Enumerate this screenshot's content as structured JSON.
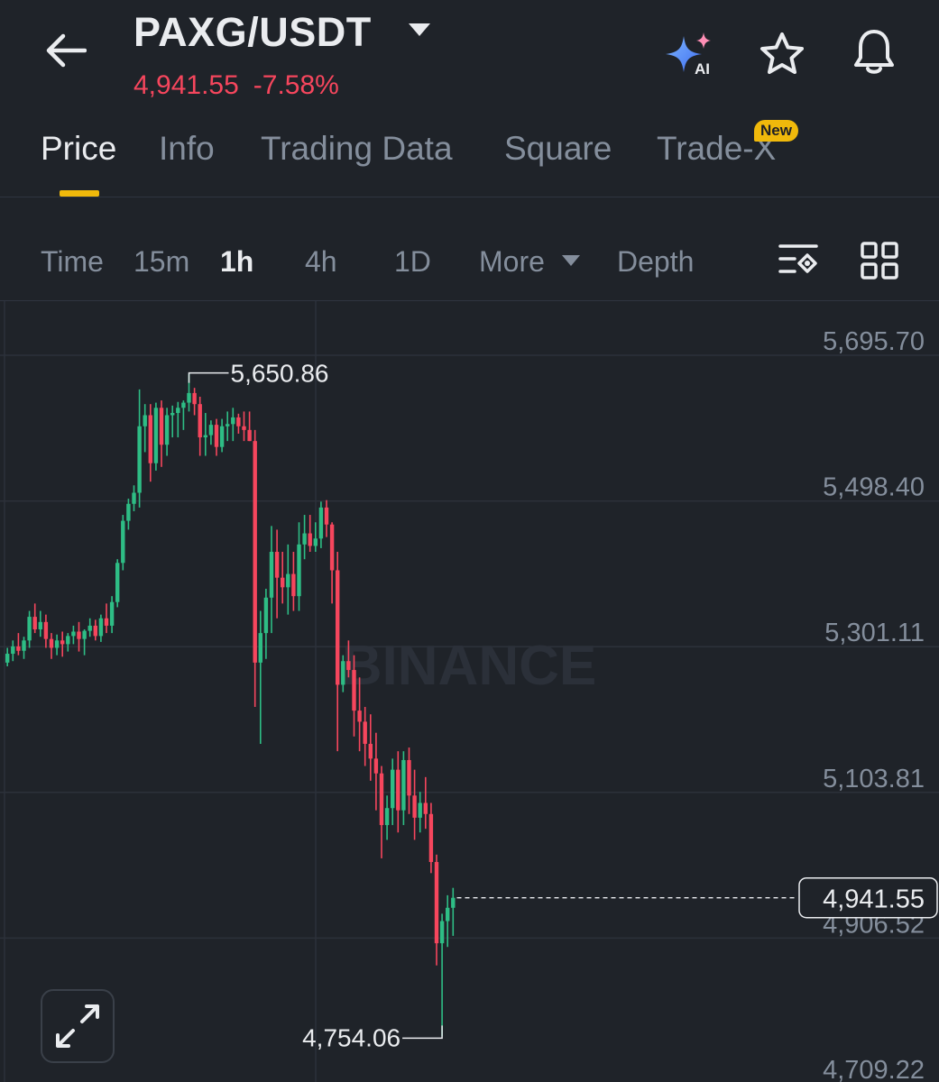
{
  "header": {
    "pair": "PAXG/USDT",
    "price": "4,941.55",
    "change": "-7.58%",
    "icons": [
      "back-arrow-icon",
      "chevron-down-icon",
      "ai-sparkle-icon",
      "star-icon",
      "bell-icon"
    ]
  },
  "tabs": [
    {
      "label": "Price",
      "active": true
    },
    {
      "label": "Info",
      "active": false
    },
    {
      "label": "Trading Data",
      "active": false
    },
    {
      "label": "Square",
      "active": false
    },
    {
      "label": "Trade-X",
      "active": false,
      "badge": "New"
    }
  ],
  "timeframes": {
    "time": "Time",
    "m15": "15m",
    "h1": "1h",
    "h4": "4h",
    "d1": "1D",
    "more": "More",
    "depth": "Depth",
    "active": "1h"
  },
  "colors": {
    "up": "#2ebd85",
    "down": "#f6465d",
    "accent": "#f0b90b",
    "background": "#1f2329"
  },
  "chart_data": {
    "type": "candlestick",
    "watermark": "BINANCE",
    "y_axis": [
      "5,695.70",
      "5,498.40",
      "5,301.11",
      "5,103.81",
      "4,906.52",
      "4,709.22"
    ],
    "ylim": [
      4709.22,
      5695.7
    ],
    "high_label": "5,650.86",
    "low_label": "4,754.06",
    "current_price_label": "4,941.55",
    "current_price": 4941.55,
    "candles": [
      [
        5260,
        5280,
        5255,
        5272
      ],
      [
        5272,
        5290,
        5262,
        5282
      ],
      [
        5282,
        5300,
        5270,
        5276
      ],
      [
        5276,
        5295,
        5265,
        5290
      ],
      [
        5290,
        5330,
        5280,
        5322
      ],
      [
        5322,
        5340,
        5300,
        5305
      ],
      [
        5305,
        5330,
        5295,
        5315
      ],
      [
        5315,
        5325,
        5280,
        5292
      ],
      [
        5292,
        5300,
        5265,
        5280
      ],
      [
        5280,
        5298,
        5270,
        5290
      ],
      [
        5290,
        5302,
        5268,
        5285
      ],
      [
        5285,
        5300,
        5275,
        5296
      ],
      [
        5296,
        5310,
        5285,
        5302
      ],
      [
        5302,
        5315,
        5275,
        5292
      ],
      [
        5292,
        5305,
        5270,
        5303
      ],
      [
        5303,
        5320,
        5295,
        5310
      ],
      [
        5310,
        5318,
        5290,
        5296
      ],
      [
        5296,
        5325,
        5288,
        5320
      ],
      [
        5320,
        5340,
        5300,
        5310
      ],
      [
        5310,
        5350,
        5300,
        5342
      ],
      [
        5342,
        5400,
        5335,
        5395
      ],
      [
        5395,
        5460,
        5385,
        5452
      ],
      [
        5452,
        5482,
        5440,
        5475
      ],
      [
        5475,
        5500,
        5465,
        5490
      ],
      [
        5490,
        5630,
        5470,
        5580
      ],
      [
        5580,
        5610,
        5545,
        5595
      ],
      [
        5595,
        5610,
        5505,
        5530
      ],
      [
        5530,
        5612,
        5520,
        5605
      ],
      [
        5605,
        5615,
        5525,
        5555
      ],
      [
        5555,
        5605,
        5540,
        5595
      ],
      [
        5595,
        5608,
        5565,
        5598
      ],
      [
        5598,
        5613,
        5565,
        5605
      ],
      [
        5605,
        5615,
        5575,
        5612
      ],
      [
        5612,
        5651,
        5600,
        5625
      ],
      [
        5625,
        5632,
        5595,
        5610
      ],
      [
        5610,
        5620,
        5540,
        5565
      ],
      [
        5565,
        5598,
        5540,
        5568
      ],
      [
        5568,
        5588,
        5555,
        5582
      ],
      [
        5582,
        5590,
        5540,
        5552
      ],
      [
        5552,
        5590,
        5545,
        5580
      ],
      [
        5580,
        5600,
        5560,
        5583
      ],
      [
        5583,
        5605,
        5560,
        5592
      ],
      [
        5592,
        5597,
        5570,
        5580
      ],
      [
        5580,
        5600,
        5560,
        5575
      ],
      [
        5575,
        5600,
        5560,
        5560
      ],
      [
        5560,
        5575,
        5200,
        5260
      ],
      [
        5260,
        5330,
        5150,
        5300
      ],
      [
        5300,
        5360,
        5265,
        5348
      ],
      [
        5348,
        5445,
        5300,
        5410
      ],
      [
        5410,
        5440,
        5320,
        5375
      ],
      [
        5375,
        5410,
        5340,
        5362
      ],
      [
        5362,
        5420,
        5325,
        5380
      ],
      [
        5380,
        5410,
        5330,
        5350
      ],
      [
        5350,
        5450,
        5330,
        5420
      ],
      [
        5420,
        5460,
        5400,
        5435
      ],
      [
        5435,
        5460,
        5410,
        5418
      ],
      [
        5418,
        5450,
        5410,
        5428
      ],
      [
        5428,
        5478,
        5415,
        5470
      ],
      [
        5470,
        5480,
        5430,
        5447
      ],
      [
        5447,
        5450,
        5340,
        5385
      ],
      [
        5385,
        5410,
        5140,
        5230
      ],
      [
        5230,
        5270,
        5220,
        5262
      ],
      [
        5262,
        5290,
        5240,
        5250
      ],
      [
        5250,
        5270,
        5160,
        5195
      ],
      [
        5195,
        5240,
        5140,
        5180
      ],
      [
        5180,
        5200,
        5120,
        5150
      ],
      [
        5150,
        5190,
        5100,
        5130
      ],
      [
        5130,
        5165,
        5060,
        5110
      ],
      [
        5110,
        5120,
        4995,
        5040
      ],
      [
        5040,
        5080,
        5020,
        5063
      ],
      [
        5063,
        5130,
        5040,
        5115
      ],
      [
        5115,
        5140,
        5030,
        5060
      ],
      [
        5060,
        5140,
        5040,
        5128
      ],
      [
        5128,
        5145,
        5055,
        5080
      ],
      [
        5080,
        5115,
        5020,
        5050
      ],
      [
        5050,
        5085,
        5030,
        5070
      ],
      [
        5070,
        5105,
        5035,
        5055
      ],
      [
        5055,
        5070,
        4975,
        4990
      ],
      [
        4990,
        5000,
        4850,
        4880
      ],
      [
        4880,
        4920,
        4754,
        4910
      ],
      [
        4910,
        4945,
        4875,
        4928
      ],
      [
        4928,
        4955,
        4890,
        4941.55
      ]
    ]
  },
  "expand": {
    "icon": "expand-arrows-icon"
  }
}
